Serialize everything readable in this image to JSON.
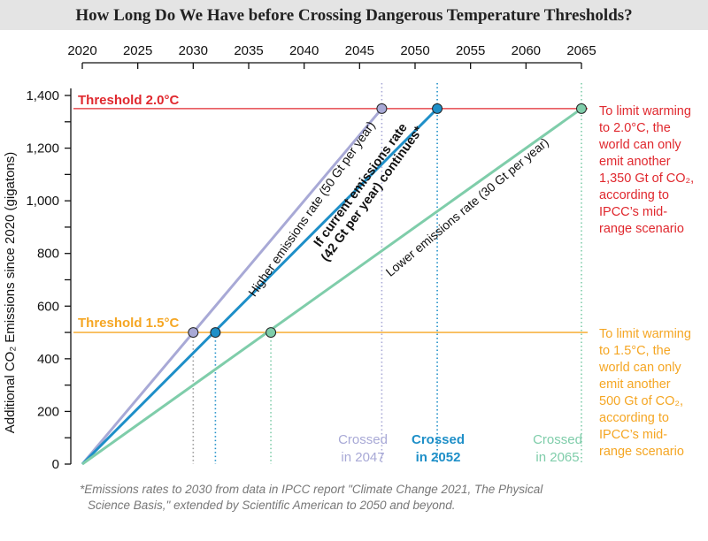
{
  "chart_data": {
    "type": "line",
    "title": "How Long Do We Have before Crossing Dangerous Temperature Thresholds?",
    "ylabel": "Additional CO₂ Emissions since 2020 (gigatons)",
    "xlim": [
      2020,
      2065
    ],
    "ylim": [
      0,
      1400
    ],
    "xticks": [
      2020,
      2025,
      2030,
      2035,
      2040,
      2045,
      2050,
      2055,
      2060,
      2065
    ],
    "yticks": [
      0,
      200,
      400,
      600,
      800,
      1000,
      1200,
      1400
    ],
    "ytick_labels": [
      "0",
      "200",
      "400",
      "600",
      "800",
      "1,000",
      "1,200",
      "1,400"
    ],
    "series": [
      {
        "key": "higher",
        "label": "Higher emissions rate (50 Gt per year)",
        "color": "#a8a9d6",
        "points": [
          [
            2020,
            0
          ],
          [
            2047,
            1350
          ]
        ],
        "cross_1_5": 2030,
        "cross_2_0": 2047,
        "crossed_line1": "Crossed",
        "crossed_line2": "in 2047",
        "bold": false
      },
      {
        "key": "current",
        "label_line1": "If current emissions rate",
        "label_line2": "(42 Gt per year) continues*",
        "color": "#1e8fc8",
        "points": [
          [
            2020,
            0
          ],
          [
            2052,
            1350
          ]
        ],
        "cross_1_5": 2032,
        "cross_2_0": 2052,
        "crossed_line1": "Crossed",
        "crossed_line2": "in 2052",
        "bold": true
      },
      {
        "key": "lower",
        "label": "Lower emissions rate (30 Gt per year)",
        "color": "#7fcdaa",
        "points": [
          [
            2020,
            0
          ],
          [
            2065,
            1350
          ]
        ],
        "cross_1_5": 2037,
        "cross_2_0": 2065,
        "crossed_line1": "Crossed",
        "crossed_line2": "in 2065",
        "bold": false
      }
    ],
    "thresholds": [
      {
        "key": "t20",
        "label": "Threshold 2.0°C",
        "value": 1350,
        "color": "#e0282e",
        "note_lines": [
          "To limit warming",
          "to 2.0°C, the",
          "world can only",
          "emit another",
          "1,350 Gt of CO₂,",
          "according to",
          "IPCC’s mid-",
          "range scenario"
        ]
      },
      {
        "key": "t15",
        "label": "Threshold 1.5°C",
        "value": 500,
        "color": "#f5a623",
        "note_lines": [
          "To limit warming",
          "to 1.5°C, the",
          "world can only",
          "emit another",
          "500 Gt of CO₂,",
          "according to",
          "IPCC’s mid-",
          "range scenario"
        ]
      }
    ],
    "footnote_line1": "*Emissions rates to 2030 from data in IPCC report \"Climate Change 2021, The Physical",
    "footnote_line2": "Science Basis,\" extended by Scientific American to 2050 and beyond."
  }
}
